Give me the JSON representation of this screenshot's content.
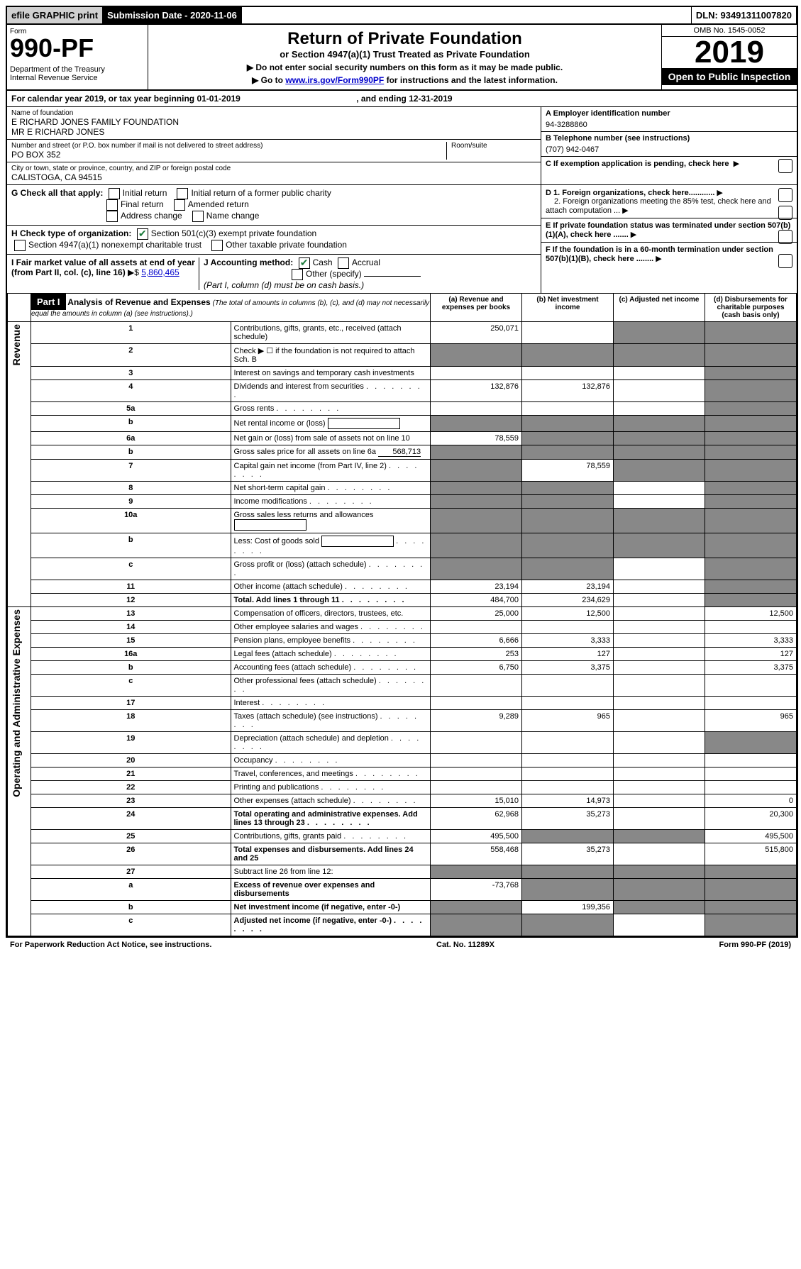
{
  "topbar": {
    "efile": "efile GRAPHIC print",
    "submission": "Submission Date - 2020-11-06",
    "dln": "DLN: 93491311007820"
  },
  "header": {
    "form_label": "Form",
    "form_no": "990-PF",
    "dept": "Department of the Treasury\nInternal Revenue Service",
    "title": "Return of Private Foundation",
    "subtitle": "or Section 4947(a)(1) Trust Treated as Private Foundation",
    "note1": "▶ Do not enter social security numbers on this form as it may be made public.",
    "note2_pre": "▶ Go to ",
    "note2_link": "www.irs.gov/Form990PF",
    "note2_post": " for instructions and the latest information.",
    "omb": "OMB No. 1545-0052",
    "year": "2019",
    "open": "Open to Public Inspection"
  },
  "cal": {
    "text_pre": "For calendar year 2019, or tax year beginning ",
    "begin": "01-01-2019",
    "text_mid": ", and ending ",
    "end": "12-31-2019"
  },
  "id": {
    "name_label": "Name of foundation",
    "name1": "E RICHARD JONES FAMILY FOUNDATION",
    "name2": "MR E RICHARD JONES",
    "addr_label": "Number and street (or P.O. box number if mail is not delivered to street address)",
    "room_label": "Room/suite",
    "addr": "PO BOX 352",
    "city_label": "City or town, state or province, country, and ZIP or foreign postal code",
    "city": "CALISTOGA, CA  94515",
    "a_label": "A Employer identification number",
    "a_val": "94-3288860",
    "b_label": "B Telephone number (see instructions)",
    "b_val": "(707) 942-0467",
    "c_label": "C If exemption application is pending, check here"
  },
  "g": {
    "label": "G Check all that apply:",
    "opts": [
      "Initial return",
      "Initial return of a former public charity",
      "Final return",
      "Amended return",
      "Address change",
      "Name change"
    ]
  },
  "h": {
    "label": "H Check type of organization:",
    "opt1": "Section 501(c)(3) exempt private foundation",
    "opt2": "Section 4947(a)(1) nonexempt charitable trust",
    "opt3": "Other taxable private foundation"
  },
  "i": {
    "label": "I Fair market value of all assets at end of year (from Part II, col. (c), line 16)",
    "arrow": "▶$",
    "val": "5,860,465"
  },
  "j": {
    "label": "J Accounting method:",
    "cash": "Cash",
    "accrual": "Accrual",
    "other": "Other (specify)",
    "note": "(Part I, column (d) must be on cash basis.)"
  },
  "d": {
    "d1": "D 1. Foreign organizations, check here............",
    "d2": "2. Foreign organizations meeting the 85% test, check here and attach computation ...",
    "e": "E  If private foundation status was terminated under section 507(b)(1)(A), check here .......",
    "f": "F  If the foundation is in a 60-month termination under section 507(b)(1)(B), check here ........"
  },
  "part1": {
    "label": "Part I",
    "title": "Analysis of Revenue and Expenses",
    "sub": "(The total of amounts in columns (b), (c), and (d) may not necessarily equal the amounts in column (a) (see instructions).)",
    "cols": {
      "a": "(a) Revenue and expenses per books",
      "b": "(b) Net investment income",
      "c": "(c) Adjusted net income",
      "d": "(d) Disbursements for charitable purposes (cash basis only)"
    }
  },
  "sides": {
    "rev": "Revenue",
    "exp": "Operating and Administrative Expenses"
  },
  "rows": [
    {
      "n": "1",
      "desc": "Contributions, gifts, grants, etc., received (attach schedule)",
      "a": "250,071",
      "b": "",
      "c": "sh",
      "d": "sh"
    },
    {
      "n": "2",
      "desc": "Check ▶ ☐ if the foundation is not required to attach Sch. B",
      "a": "sh",
      "b": "sh",
      "c": "sh",
      "d": "sh",
      "dotted": true
    },
    {
      "n": "3",
      "desc": "Interest on savings and temporary cash investments",
      "a": "",
      "b": "",
      "c": "",
      "d": "sh"
    },
    {
      "n": "4",
      "desc": "Dividends and interest from securities",
      "a": "132,876",
      "b": "132,876",
      "c": "",
      "d": "sh",
      "dots": true
    },
    {
      "n": "5a",
      "desc": "Gross rents",
      "a": "",
      "b": "",
      "c": "",
      "d": "sh",
      "dots": true
    },
    {
      "n": "b",
      "desc": "Net rental income or (loss)",
      "a": "sh",
      "b": "sh",
      "c": "sh",
      "d": "sh",
      "inline": true
    },
    {
      "n": "6a",
      "desc": "Net gain or (loss) from sale of assets not on line 10",
      "a": "78,559",
      "b": "sh",
      "c": "sh",
      "d": "sh"
    },
    {
      "n": "b",
      "desc": "Gross sales price for all assets on line 6a",
      "a": "sh",
      "b": "sh",
      "c": "sh",
      "d": "sh",
      "inline_val": "568,713"
    },
    {
      "n": "7",
      "desc": "Capital gain net income (from Part IV, line 2)",
      "a": "sh",
      "b": "78,559",
      "c": "sh",
      "d": "sh",
      "dots": true
    },
    {
      "n": "8",
      "desc": "Net short-term capital gain",
      "a": "sh",
      "b": "sh",
      "c": "",
      "d": "sh",
      "dots": true
    },
    {
      "n": "9",
      "desc": "Income modifications",
      "a": "sh",
      "b": "sh",
      "c": "",
      "d": "sh",
      "dots": true
    },
    {
      "n": "10a",
      "desc": "Gross sales less returns and allowances",
      "a": "sh",
      "b": "sh",
      "c": "sh",
      "d": "sh",
      "inline": true
    },
    {
      "n": "b",
      "desc": "Less: Cost of goods sold",
      "a": "sh",
      "b": "sh",
      "c": "sh",
      "d": "sh",
      "inline": true,
      "dots": true
    },
    {
      "n": "c",
      "desc": "Gross profit or (loss) (attach schedule)",
      "a": "sh",
      "b": "sh",
      "c": "",
      "d": "sh",
      "dots": true
    },
    {
      "n": "11",
      "desc": "Other income (attach schedule)",
      "a": "23,194",
      "b": "23,194",
      "c": "",
      "d": "sh",
      "dots": true
    },
    {
      "n": "12",
      "desc": "Total. Add lines 1 through 11",
      "a": "484,700",
      "b": "234,629",
      "c": "",
      "d": "sh",
      "bold": true,
      "dots": true
    },
    {
      "n": "13",
      "desc": "Compensation of officers, directors, trustees, etc.",
      "a": "25,000",
      "b": "12,500",
      "c": "",
      "d": "12,500"
    },
    {
      "n": "14",
      "desc": "Other employee salaries and wages",
      "a": "",
      "b": "",
      "c": "",
      "d": "",
      "dots": true
    },
    {
      "n": "15",
      "desc": "Pension plans, employee benefits",
      "a": "6,666",
      "b": "3,333",
      "c": "",
      "d": "3,333",
      "dots": true
    },
    {
      "n": "16a",
      "desc": "Legal fees (attach schedule)",
      "a": "253",
      "b": "127",
      "c": "",
      "d": "127",
      "dots": true
    },
    {
      "n": "b",
      "desc": "Accounting fees (attach schedule)",
      "a": "6,750",
      "b": "3,375",
      "c": "",
      "d": "3,375",
      "dots": true
    },
    {
      "n": "c",
      "desc": "Other professional fees (attach schedule)",
      "a": "",
      "b": "",
      "c": "",
      "d": "",
      "dots": true
    },
    {
      "n": "17",
      "desc": "Interest",
      "a": "",
      "b": "",
      "c": "",
      "d": "",
      "dots": true
    },
    {
      "n": "18",
      "desc": "Taxes (attach schedule) (see instructions)",
      "a": "9,289",
      "b": "965",
      "c": "",
      "d": "965",
      "dots": true
    },
    {
      "n": "19",
      "desc": "Depreciation (attach schedule) and depletion",
      "a": "",
      "b": "",
      "c": "",
      "d": "sh",
      "dots": true
    },
    {
      "n": "20",
      "desc": "Occupancy",
      "a": "",
      "b": "",
      "c": "",
      "d": "",
      "dots": true
    },
    {
      "n": "21",
      "desc": "Travel, conferences, and meetings",
      "a": "",
      "b": "",
      "c": "",
      "d": "",
      "dots": true
    },
    {
      "n": "22",
      "desc": "Printing and publications",
      "a": "",
      "b": "",
      "c": "",
      "d": "",
      "dots": true
    },
    {
      "n": "23",
      "desc": "Other expenses (attach schedule)",
      "a": "15,010",
      "b": "14,973",
      "c": "",
      "d": "0",
      "dots": true
    },
    {
      "n": "24",
      "desc": "Total operating and administrative expenses. Add lines 13 through 23",
      "a": "62,968",
      "b": "35,273",
      "c": "",
      "d": "20,300",
      "bold": true,
      "dots": true
    },
    {
      "n": "25",
      "desc": "Contributions, gifts, grants paid",
      "a": "495,500",
      "b": "sh",
      "c": "sh",
      "d": "495,500",
      "dots": true
    },
    {
      "n": "26",
      "desc": "Total expenses and disbursements. Add lines 24 and 25",
      "a": "558,468",
      "b": "35,273",
      "c": "",
      "d": "515,800",
      "bold": true
    },
    {
      "n": "27",
      "desc": "Subtract line 26 from line 12:",
      "a": "sh",
      "b": "sh",
      "c": "sh",
      "d": "sh"
    },
    {
      "n": "a",
      "desc": "Excess of revenue over expenses and disbursements",
      "a": "-73,768",
      "b": "sh",
      "c": "sh",
      "d": "sh",
      "bold": true
    },
    {
      "n": "b",
      "desc": "Net investment income (if negative, enter -0-)",
      "a": "sh",
      "b": "199,356",
      "c": "sh",
      "d": "sh",
      "bold": true
    },
    {
      "n": "c",
      "desc": "Adjusted net income (if negative, enter -0-)",
      "a": "sh",
      "b": "sh",
      "c": "",
      "d": "sh",
      "bold": true,
      "dots": true
    }
  ],
  "footer": {
    "left": "For Paperwork Reduction Act Notice, see instructions.",
    "mid": "Cat. No. 11289X",
    "right": "Form 990-PF (2019)"
  }
}
